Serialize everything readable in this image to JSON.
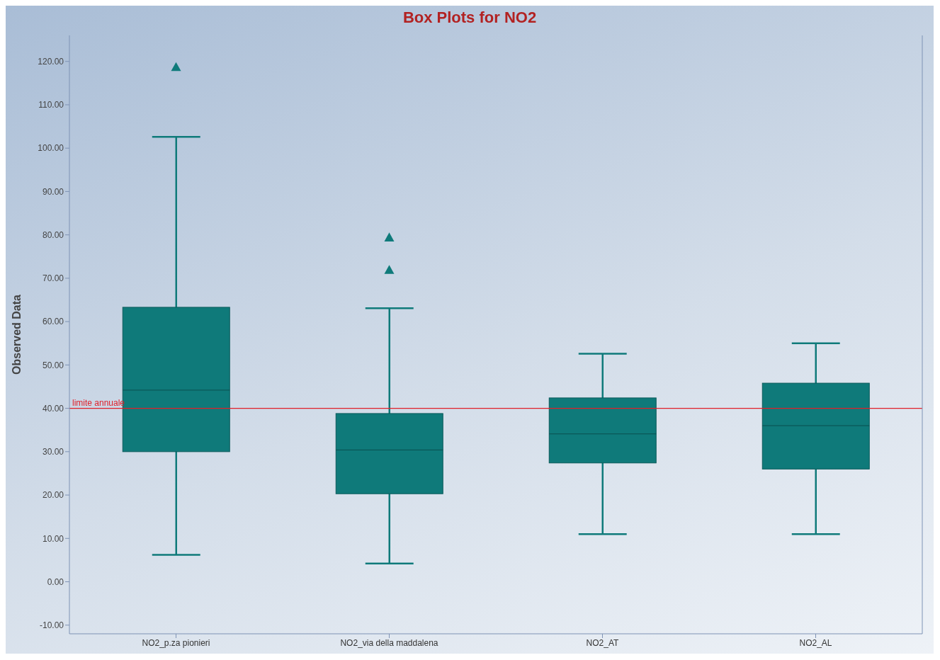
{
  "chart_data": {
    "type": "box",
    "title": "Box Plots for NO2",
    "ylabel": "Observed Data",
    "categories": [
      "NO2_p.za pionieri",
      "NO2_via della maddalena",
      "NO2_AT",
      "NO2_AL"
    ],
    "boxes": [
      {
        "low": 6.2,
        "q1": 30.0,
        "median": 44.2,
        "q3": 63.3,
        "high": 102.6,
        "outliers": [
          118.7
        ]
      },
      {
        "low": 4.2,
        "q1": 20.3,
        "median": 30.4,
        "q3": 38.8,
        "high": 63.1,
        "outliers": [
          79.4,
          71.9
        ]
      },
      {
        "low": 11.0,
        "q1": 27.4,
        "median": 34.1,
        "q3": 42.4,
        "high": 52.6
      },
      {
        "low": 11.0,
        "q1": 26.0,
        "median": 36.0,
        "q3": 45.8,
        "high": 55.0
      }
    ],
    "color": "#0f7a7a",
    "marker": "triangle",
    "ylim": [
      -12,
      126
    ],
    "yticks": [
      {
        "value": -10,
        "label": "-10.00"
      },
      {
        "value": 0,
        "label": "0.00"
      },
      {
        "value": 10,
        "label": "10.00"
      },
      {
        "value": 20,
        "label": "20.00"
      },
      {
        "value": 30,
        "label": "30.00"
      },
      {
        "value": 40,
        "label": "40.00"
      },
      {
        "value": 50,
        "label": "50.00"
      },
      {
        "value": 60,
        "label": "60.00"
      },
      {
        "value": 70,
        "label": "70.00"
      },
      {
        "value": 80,
        "label": "80.00"
      },
      {
        "value": 90,
        "label": "90.00"
      },
      {
        "value": 100,
        "label": "100.00"
      },
      {
        "value": 110,
        "label": "110.00"
      },
      {
        "value": 120,
        "label": "120.00"
      }
    ],
    "ref_lines": [
      {
        "axis": "y",
        "value": 40,
        "label": "limite annuale",
        "color": "#e0202a"
      }
    ]
  }
}
